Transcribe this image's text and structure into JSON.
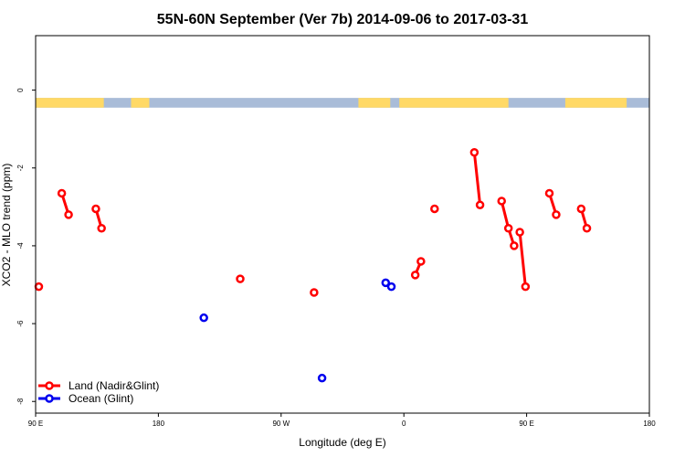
{
  "chart_data": {
    "type": "scatter",
    "title": "55N-60N September (Ver 7b)   2014-09-06 to 2017-03-31",
    "xlabel": "Longitude (deg E)",
    "ylabel": "XCO2 - MLO trend (ppm)",
    "xlim": [
      -90,
      180
    ],
    "ylim": [
      -8.3,
      1.4
    ],
    "x_ticks": [
      {
        "value": -90,
        "label": "90 E"
      },
      {
        "value": -36,
        "label": "180"
      },
      {
        "value": 18,
        "label": "90 W"
      },
      {
        "value": 72,
        "label": "0"
      },
      {
        "value": 126,
        "label": "90 E"
      },
      {
        "value": 180,
        "label": "180"
      }
    ],
    "y_ticks": [
      {
        "value": 0,
        "label": "0"
      },
      {
        "value": -2,
        "label": "-2"
      },
      {
        "value": -4,
        "label": "-4"
      },
      {
        "value": -6,
        "label": "-6"
      },
      {
        "value": -8,
        "label": "-8"
      }
    ],
    "grid": false,
    "legend_position": "bottom-left",
    "map_strip": {
      "y_range": [
        -0.45,
        -0.2
      ],
      "land_color": "#ffd966",
      "ocean_color": "#a9bcd8"
    },
    "series": [
      {
        "name": "Land (Nadir&Glint)",
        "color": "#ff0000",
        "segments": [
          [
            {
              "x": -88.6,
              "y": -5.05
            }
          ],
          [
            {
              "x": -78.5,
              "y": -2.65
            },
            {
              "x": -75.5,
              "y": -3.2
            }
          ],
          [
            {
              "x": -63.5,
              "y": -3.05
            },
            {
              "x": -61,
              "y": -3.55
            }
          ],
          [
            {
              "x": 0,
              "y": -4.85
            }
          ],
          [
            {
              "x": 32.5,
              "y": -5.2
            }
          ],
          [
            {
              "x": 77,
              "y": -4.75
            },
            {
              "x": 79.5,
              "y": -4.4
            }
          ],
          [
            {
              "x": 85.5,
              "y": -3.05
            }
          ],
          [
            {
              "x": 103,
              "y": -1.6
            },
            {
              "x": 105.5,
              "y": -2.95
            }
          ],
          [
            {
              "x": 115,
              "y": -2.85
            },
            {
              "x": 118,
              "y": -3.55
            },
            {
              "x": 120.5,
              "y": -4
            }
          ],
          [
            {
              "x": 123,
              "y": -3.65
            },
            {
              "x": 125.5,
              "y": -5.05
            }
          ],
          [
            {
              "x": 136,
              "y": -2.65
            },
            {
              "x": 139,
              "y": -3.2
            }
          ],
          [
            {
              "x": 150,
              "y": -3.05
            },
            {
              "x": 152.5,
              "y": -3.55
            }
          ]
        ]
      },
      {
        "name": "Ocean (Glint)",
        "color": "#0000ee",
        "segments": [
          [
            {
              "x": -16,
              "y": -5.85
            }
          ],
          [
            {
              "x": 36,
              "y": -7.4
            }
          ],
          [
            {
              "x": 64,
              "y": -4.95
            }
          ],
          [
            {
              "x": 66.5,
              "y": -5.05
            }
          ]
        ]
      }
    ]
  }
}
